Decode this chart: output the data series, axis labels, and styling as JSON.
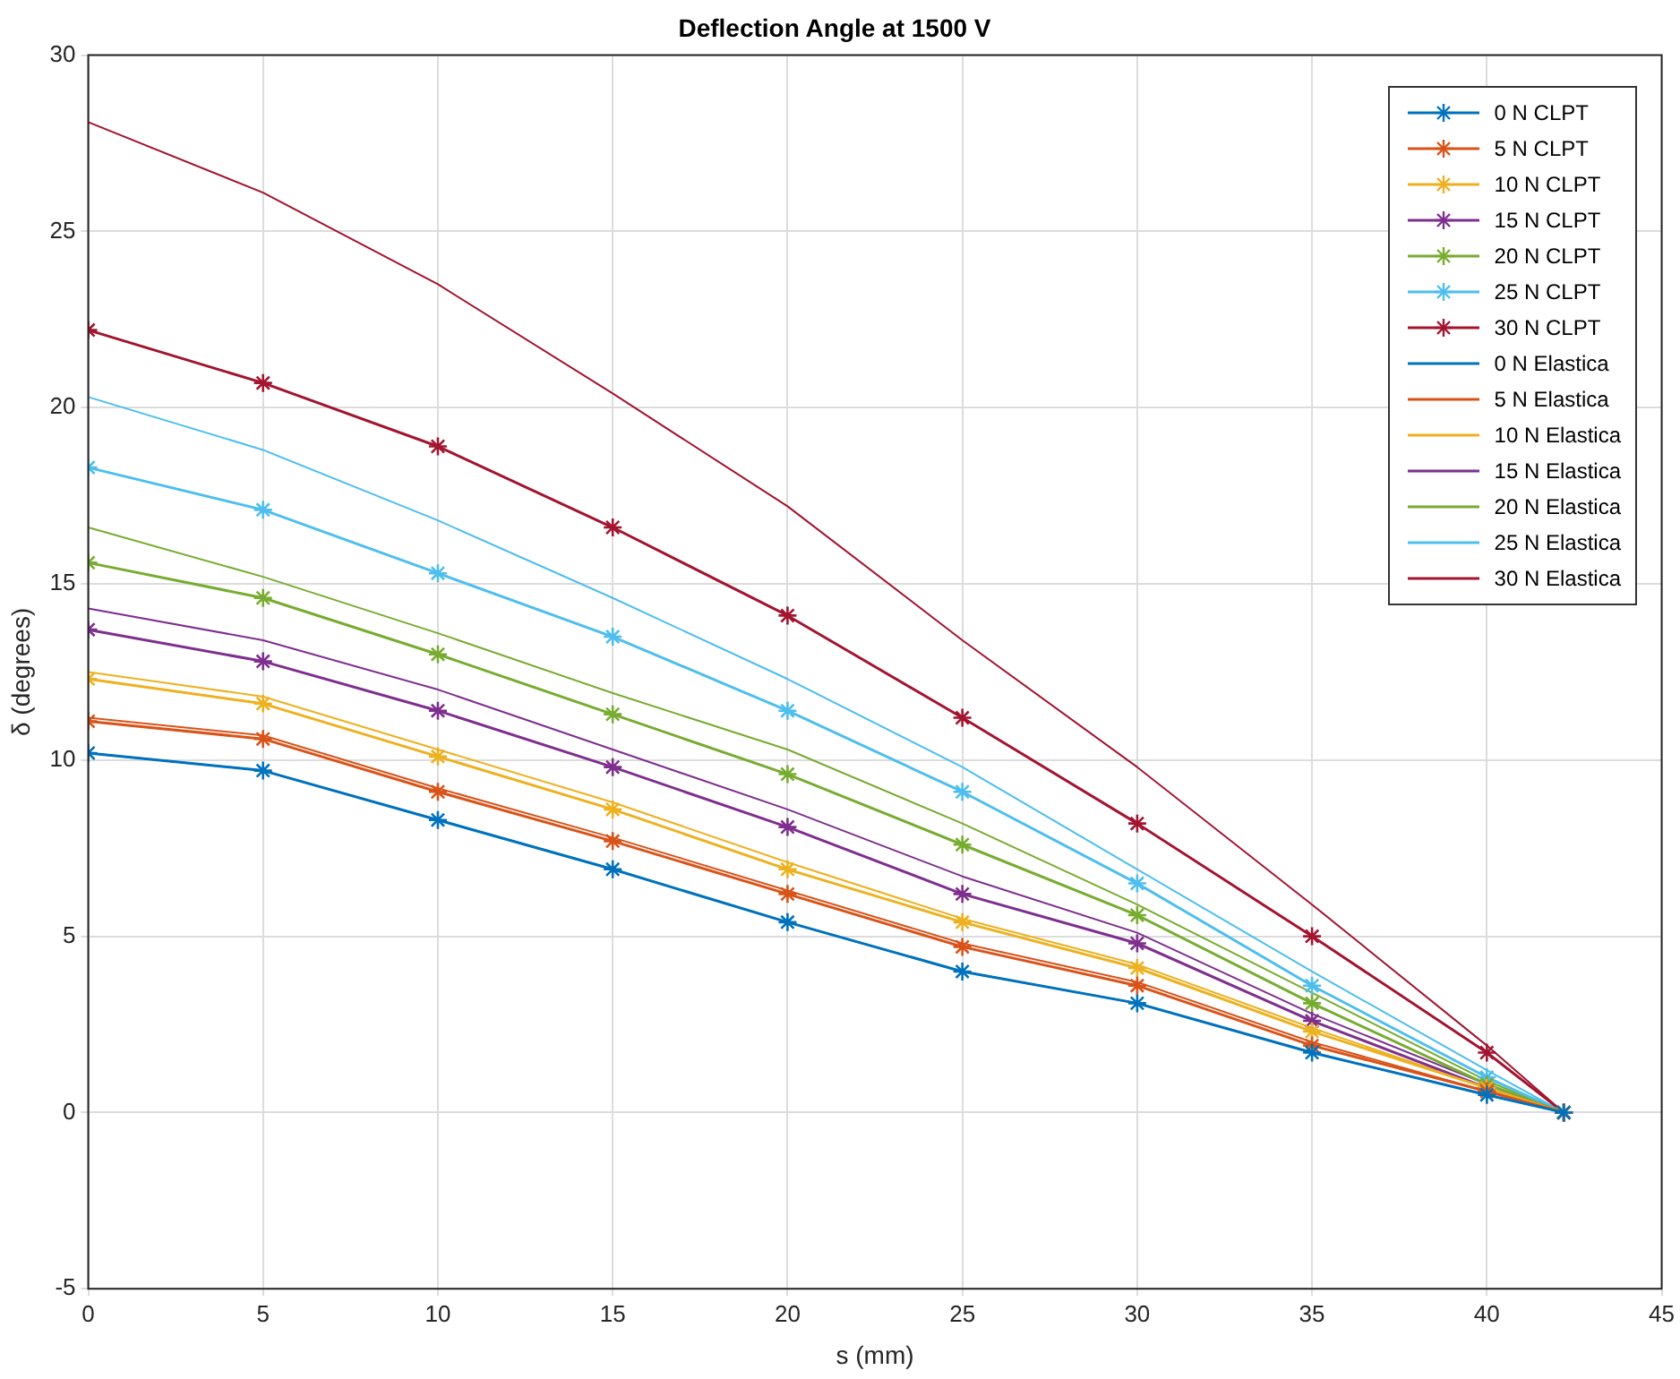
{
  "chart_data": {
    "type": "line",
    "title": "Deflection Angle at 1500 V",
    "xlabel": "s (mm)",
    "ylabel": "δ (degrees)",
    "x": [
      0,
      5,
      10,
      15,
      20,
      25,
      30,
      35,
      40,
      42.2
    ],
    "xlim": [
      0,
      45
    ],
    "xticks": [
      0,
      5,
      10,
      15,
      20,
      25,
      30,
      35,
      40,
      45
    ],
    "ylim": [
      -5,
      30
    ],
    "yticks": [
      -5,
      0,
      5,
      10,
      15,
      20,
      25,
      30
    ],
    "grid": true,
    "legend": "top right",
    "line_style": "solid",
    "series": [
      {
        "name": "0 N CLPT",
        "color": "#0072bd",
        "marker": "cross",
        "values": [
          10.2,
          9.7,
          8.3,
          6.9,
          5.4,
          4.0,
          3.1,
          1.7,
          0.5,
          0
        ]
      },
      {
        "name": "5 N CLPT",
        "color": "#d95319",
        "marker": "cross",
        "values": [
          11.1,
          10.6,
          9.1,
          7.7,
          6.2,
          4.7,
          3.6,
          1.9,
          0.6,
          0
        ]
      },
      {
        "name": "10 N CLPT",
        "color": "#edb120",
        "marker": "cross",
        "values": [
          12.3,
          11.6,
          10.1,
          8.6,
          6.9,
          5.4,
          4.1,
          2.3,
          0.7,
          0
        ]
      },
      {
        "name": "15 N CLPT",
        "color": "#7e2f8e",
        "marker": "cross",
        "values": [
          13.7,
          12.8,
          11.4,
          9.8,
          8.1,
          6.2,
          4.8,
          2.6,
          0.7,
          0
        ]
      },
      {
        "name": "20 N CLPT",
        "color": "#77ac30",
        "marker": "cross",
        "values": [
          15.6,
          14.6,
          13.0,
          11.3,
          9.6,
          7.6,
          5.6,
          3.1,
          0.8,
          0
        ]
      },
      {
        "name": "25 N CLPT",
        "color": "#4dbeee",
        "marker": "cross",
        "values": [
          18.3,
          17.1,
          15.3,
          13.5,
          11.4,
          9.1,
          6.5,
          3.6,
          1.0,
          0
        ]
      },
      {
        "name": "30 N CLPT",
        "color": "#a2142f",
        "marker": "cross",
        "values": [
          22.2,
          20.7,
          18.9,
          16.6,
          14.1,
          11.2,
          8.2,
          5.0,
          1.7,
          0
        ]
      },
      {
        "name": "0 N Elastica",
        "color": "#0072bd",
        "marker": "none",
        "values": [
          10.2,
          9.7,
          8.3,
          6.9,
          5.4,
          4.0,
          3.1,
          1.7,
          0.5,
          0
        ]
      },
      {
        "name": "5 N Elastica",
        "color": "#d95319",
        "marker": "none",
        "values": [
          11.2,
          10.7,
          9.2,
          7.8,
          6.3,
          4.8,
          3.7,
          2.0,
          0.6,
          0
        ]
      },
      {
        "name": "10 N Elastica",
        "color": "#edb120",
        "marker": "none",
        "values": [
          12.5,
          11.8,
          10.3,
          8.8,
          7.1,
          5.5,
          4.2,
          2.4,
          0.7,
          0
        ]
      },
      {
        "name": "15 N Elastica",
        "color": "#7e2f8e",
        "marker": "none",
        "values": [
          14.3,
          13.4,
          12.0,
          10.3,
          8.6,
          6.7,
          5.1,
          2.8,
          0.8,
          0
        ]
      },
      {
        "name": "20 N Elastica",
        "color": "#77ac30",
        "marker": "none",
        "values": [
          16.6,
          15.2,
          13.6,
          11.9,
          10.3,
          8.2,
          5.9,
          3.4,
          0.9,
          0
        ]
      },
      {
        "name": "25 N Elastica",
        "color": "#4dbeee",
        "marker": "none",
        "values": [
          20.3,
          18.8,
          16.8,
          14.6,
          12.3,
          9.8,
          6.9,
          4.0,
          1.2,
          0
        ]
      },
      {
        "name": "30 N Elastica",
        "color": "#a2142f",
        "marker": "none",
        "values": [
          28.1,
          26.1,
          23.5,
          20.4,
          17.2,
          13.4,
          9.8,
          5.9,
          1.9,
          0
        ]
      }
    ]
  }
}
